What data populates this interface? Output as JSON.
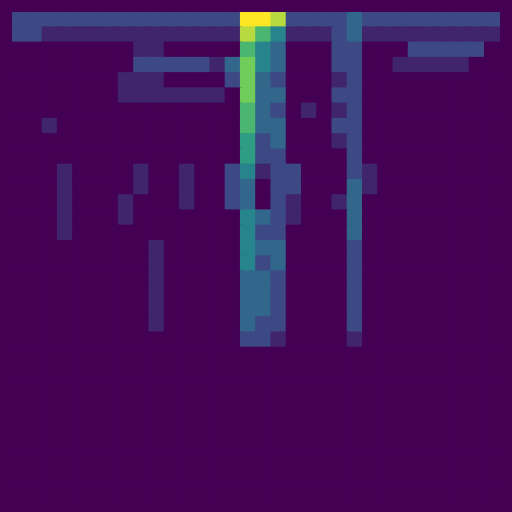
{
  "chart_data": {
    "type": "heatmap",
    "tick_labels": false,
    "grid": false,
    "cells": [
      [
        2,
        2,
        2,
        2,
        2,
        2,
        2,
        2,
        2,
        2,
        2,
        2,
        2,
        2,
        2,
        9,
        9,
        8,
        2,
        2,
        2,
        2,
        3,
        2,
        2,
        2,
        2,
        2,
        2,
        2,
        2,
        2
      ],
      [
        2,
        2,
        1,
        1,
        1,
        1,
        1,
        1,
        1,
        1,
        1,
        1,
        1,
        1,
        1,
        8,
        6,
        4,
        1,
        1,
        1,
        2,
        3,
        1,
        1,
        1,
        1,
        1,
        1,
        1,
        1,
        1
      ],
      [
        0,
        0,
        0,
        0,
        0,
        0,
        0,
        0,
        1,
        1,
        0,
        0,
        0,
        0,
        0,
        6,
        4,
        3,
        0,
        0,
        0,
        2,
        2,
        0,
        0,
        0,
        2,
        2,
        2,
        2,
        2,
        0
      ],
      [
        0,
        0,
        0,
        0,
        0,
        0,
        0,
        0,
        2,
        2,
        2,
        2,
        2,
        1,
        3,
        7,
        4,
        3,
        0,
        0,
        0,
        2,
        2,
        0,
        0,
        1,
        1,
        1,
        1,
        1,
        0,
        0
      ],
      [
        0,
        0,
        0,
        0,
        0,
        0,
        0,
        1,
        1,
        1,
        0,
        0,
        0,
        0,
        2,
        7,
        3,
        2,
        0,
        0,
        0,
        1,
        2,
        0,
        0,
        0,
        0,
        0,
        0,
        0,
        0,
        0
      ],
      [
        0,
        0,
        0,
        0,
        0,
        0,
        0,
        1,
        1,
        1,
        1,
        1,
        1,
        1,
        0,
        7,
        3,
        3,
        0,
        0,
        0,
        2,
        2,
        0,
        0,
        0,
        0,
        0,
        0,
        0,
        0,
        0
      ],
      [
        0,
        0,
        0,
        0,
        0,
        0,
        0,
        0,
        0,
        0,
        0,
        0,
        0,
        0,
        0,
        6,
        3,
        2,
        0,
        1,
        0,
        1,
        2,
        0,
        0,
        0,
        0,
        0,
        0,
        0,
        0,
        0
      ],
      [
        0,
        0,
        1,
        0,
        0,
        0,
        0,
        0,
        0,
        0,
        0,
        0,
        0,
        0,
        0,
        6,
        3,
        3,
        0,
        0,
        0,
        2,
        2,
        0,
        0,
        0,
        0,
        0,
        0,
        0,
        0,
        0
      ],
      [
        0,
        0,
        0,
        0,
        0,
        0,
        0,
        0,
        0,
        0,
        0,
        0,
        0,
        0,
        0,
        5,
        2,
        3,
        0,
        0,
        0,
        1,
        2,
        0,
        0,
        0,
        0,
        0,
        0,
        0,
        0,
        0
      ],
      [
        0,
        0,
        0,
        0,
        0,
        0,
        0,
        0,
        0,
        0,
        0,
        0,
        0,
        0,
        0,
        5,
        2,
        2,
        0,
        0,
        0,
        0,
        2,
        0,
        0,
        0,
        0,
        0,
        0,
        0,
        0,
        0
      ],
      [
        0,
        0,
        0,
        1,
        0,
        0,
        0,
        0,
        1,
        0,
        0,
        1,
        0,
        0,
        2,
        4,
        1,
        2,
        2,
        0,
        0,
        0,
        2,
        1,
        0,
        0,
        0,
        0,
        0,
        0,
        0,
        0
      ],
      [
        0,
        0,
        0,
        1,
        0,
        0,
        0,
        0,
        1,
        0,
        0,
        1,
        0,
        0,
        2,
        3,
        0,
        2,
        2,
        0,
        0,
        0,
        3,
        1,
        0,
        0,
        0,
        0,
        0,
        0,
        0,
        0
      ],
      [
        0,
        0,
        0,
        1,
        0,
        0,
        0,
        1,
        0,
        0,
        0,
        1,
        0,
        0,
        2,
        3,
        0,
        2,
        1,
        0,
        0,
        1,
        3,
        0,
        0,
        0,
        0,
        0,
        0,
        0,
        0,
        0
      ],
      [
        0,
        0,
        0,
        1,
        0,
        0,
        0,
        1,
        0,
        0,
        0,
        0,
        0,
        0,
        0,
        4,
        3,
        2,
        1,
        0,
        0,
        0,
        3,
        0,
        0,
        0,
        0,
        0,
        0,
        0,
        0,
        0
      ],
      [
        0,
        0,
        0,
        1,
        0,
        0,
        0,
        0,
        0,
        0,
        0,
        0,
        0,
        0,
        0,
        4,
        2,
        2,
        0,
        0,
        0,
        0,
        3,
        0,
        0,
        0,
        0,
        0,
        0,
        0,
        0,
        0
      ],
      [
        0,
        0,
        0,
        0,
        0,
        0,
        0,
        0,
        0,
        1,
        0,
        0,
        0,
        0,
        0,
        4,
        3,
        3,
        0,
        0,
        0,
        0,
        2,
        0,
        0,
        0,
        0,
        0,
        0,
        0,
        0,
        0
      ],
      [
        0,
        0,
        0,
        0,
        0,
        0,
        0,
        0,
        0,
        1,
        0,
        0,
        0,
        0,
        0,
        4,
        2,
        3,
        0,
        0,
        0,
        0,
        2,
        0,
        0,
        0,
        0,
        0,
        0,
        0,
        0,
        0
      ],
      [
        0,
        0,
        0,
        0,
        0,
        0,
        0,
        0,
        0,
        1,
        0,
        0,
        0,
        0,
        0,
        3,
        3,
        2,
        0,
        0,
        0,
        0,
        2,
        0,
        0,
        0,
        0,
        0,
        0,
        0,
        0,
        0
      ],
      [
        0,
        0,
        0,
        0,
        0,
        0,
        0,
        0,
        0,
        1,
        0,
        0,
        0,
        0,
        0,
        3,
        3,
        2,
        0,
        0,
        0,
        0,
        2,
        0,
        0,
        0,
        0,
        0,
        0,
        0,
        0,
        0
      ],
      [
        0,
        0,
        0,
        0,
        0,
        0,
        0,
        0,
        0,
        1,
        0,
        0,
        0,
        0,
        0,
        3,
        3,
        2,
        0,
        0,
        0,
        0,
        2,
        0,
        0,
        0,
        0,
        0,
        0,
        0,
        0,
        0
      ],
      [
        0,
        0,
        0,
        0,
        0,
        0,
        0,
        0,
        0,
        1,
        0,
        0,
        0,
        0,
        0,
        3,
        2,
        2,
        0,
        0,
        0,
        0,
        2,
        0,
        0,
        0,
        0,
        0,
        0,
        0,
        0,
        0
      ],
      [
        0,
        0,
        0,
        0,
        0,
        0,
        0,
        0,
        0,
        0,
        0,
        0,
        0,
        0,
        0,
        2,
        2,
        1,
        0,
        0,
        0,
        0,
        1,
        0,
        0,
        0,
        0,
        0,
        0,
        0,
        0,
        0
      ],
      [
        0,
        0,
        0,
        0,
        0,
        0,
        0,
        0,
        0,
        0,
        0,
        0,
        0,
        0,
        0,
        0,
        0,
        0,
        0,
        0,
        0,
        0,
        0,
        0,
        0,
        0,
        0,
        0,
        0,
        0,
        0,
        0
      ],
      [
        0,
        0,
        0,
        0,
        0,
        0,
        0,
        0,
        0,
        0,
        0,
        0,
        0,
        0,
        0,
        0,
        0,
        0,
        0,
        0,
        0,
        0,
        0,
        0,
        0,
        0,
        0,
        0,
        0,
        0,
        0,
        0
      ],
      [
        0,
        0,
        0,
        0,
        0,
        0,
        0,
        0,
        0,
        0,
        0,
        0,
        0,
        0,
        0,
        0,
        0,
        0,
        0,
        0,
        0,
        0,
        0,
        0,
        0,
        0,
        0,
        0,
        0,
        0,
        0,
        0
      ],
      [
        0,
        0,
        0,
        0,
        0,
        0,
        0,
        0,
        0,
        0,
        0,
        0,
        0,
        0,
        0,
        0,
        0,
        0,
        0,
        0,
        0,
        0,
        0,
        0,
        0,
        0,
        0,
        0,
        0,
        0,
        0,
        0
      ],
      [
        0,
        0,
        0,
        0,
        0,
        0,
        0,
        0,
        0,
        0,
        0,
        0,
        0,
        0,
        0,
        0,
        0,
        0,
        0,
        0,
        0,
        0,
        0,
        0,
        0,
        0,
        0,
        0,
        0,
        0,
        0,
        0
      ],
      [
        0,
        0,
        0,
        0,
        0,
        0,
        0,
        0,
        0,
        0,
        0,
        0,
        0,
        0,
        0,
        0,
        0,
        0,
        0,
        0,
        0,
        0,
        0,
        0,
        0,
        0,
        0,
        0,
        0,
        0,
        0,
        0
      ],
      [
        0,
        0,
        0,
        0,
        0,
        0,
        0,
        0,
        0,
        0,
        0,
        0,
        0,
        0,
        0,
        0,
        0,
        0,
        0,
        0,
        0,
        0,
        0,
        0,
        0,
        0,
        0,
        0,
        0,
        0,
        0,
        0
      ],
      [
        0,
        0,
        0,
        0,
        0,
        0,
        0,
        0,
        0,
        0,
        0,
        0,
        0,
        0,
        0,
        0,
        0,
        0,
        0,
        0,
        0,
        0,
        0,
        0,
        0,
        0,
        0,
        0,
        0,
        0,
        0,
        0
      ],
      [
        0,
        0,
        0,
        0,
        0,
        0,
        0,
        0,
        0,
        0,
        0,
        0,
        0,
        0,
        0,
        0,
        0,
        0,
        0,
        0,
        0,
        0,
        0,
        0,
        0,
        0,
        0,
        0,
        0,
        0,
        0,
        0
      ],
      [
        0,
        0,
        0,
        0,
        0,
        0,
        0,
        0,
        0,
        0,
        0,
        0,
        0,
        0,
        0,
        0,
        0,
        0,
        0,
        0,
        0,
        0,
        0,
        0,
        0,
        0,
        0,
        0,
        0,
        0,
        0,
        0
      ]
    ]
  }
}
